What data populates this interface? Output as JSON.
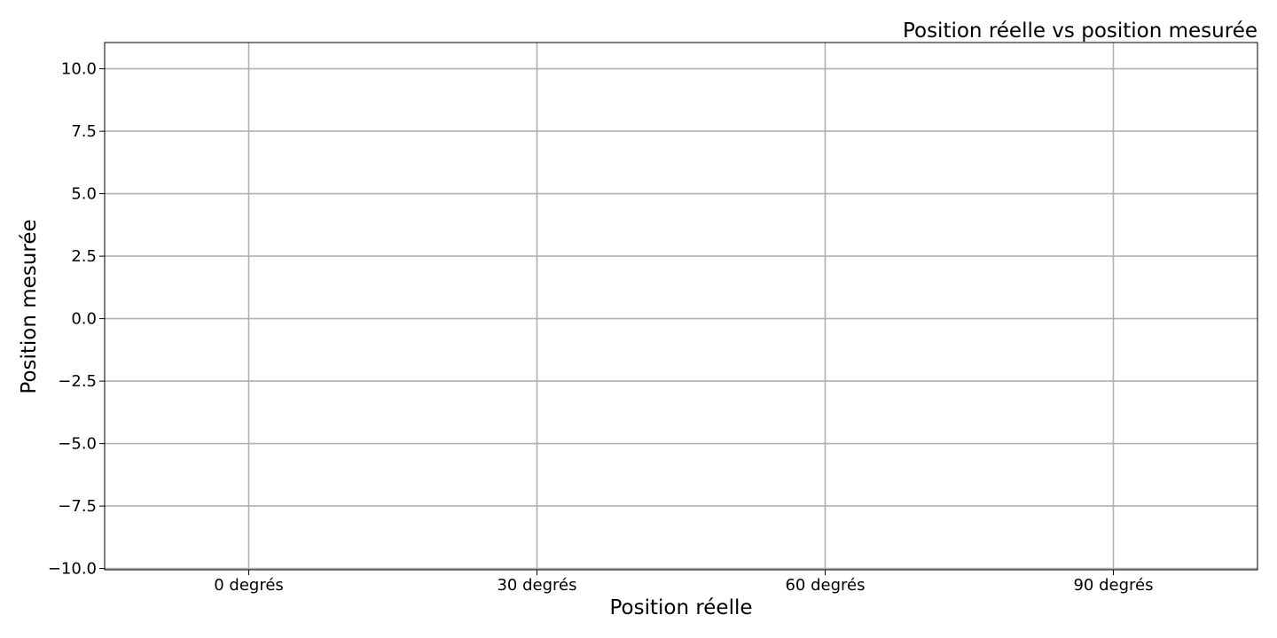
{
  "chart_data": {
    "type": "scatter",
    "title": "Position réelle vs position mesurée",
    "xlabel": "Position réelle",
    "ylabel": "Position mesurée",
    "categories": [
      "0 degrés",
      "30 degrés",
      "60 degrés",
      "90 degrés"
    ],
    "yticks": [
      10.0,
      7.5,
      5.0,
      2.5,
      0.0,
      -2.5,
      -5.0,
      -7.5,
      -10.0
    ],
    "ytick_labels": [
      "10.0",
      "7.5",
      "5.0",
      "2.5",
      "0.0",
      "−2.5",
      "−5.0",
      "−7.5",
      "−10.0"
    ],
    "ylim": [
      -10.05,
      11.05
    ],
    "grid": true,
    "series": [],
    "colors": {
      "grid": "#b0b0b0",
      "axes": "#000000",
      "background": "#ffffff"
    }
  }
}
